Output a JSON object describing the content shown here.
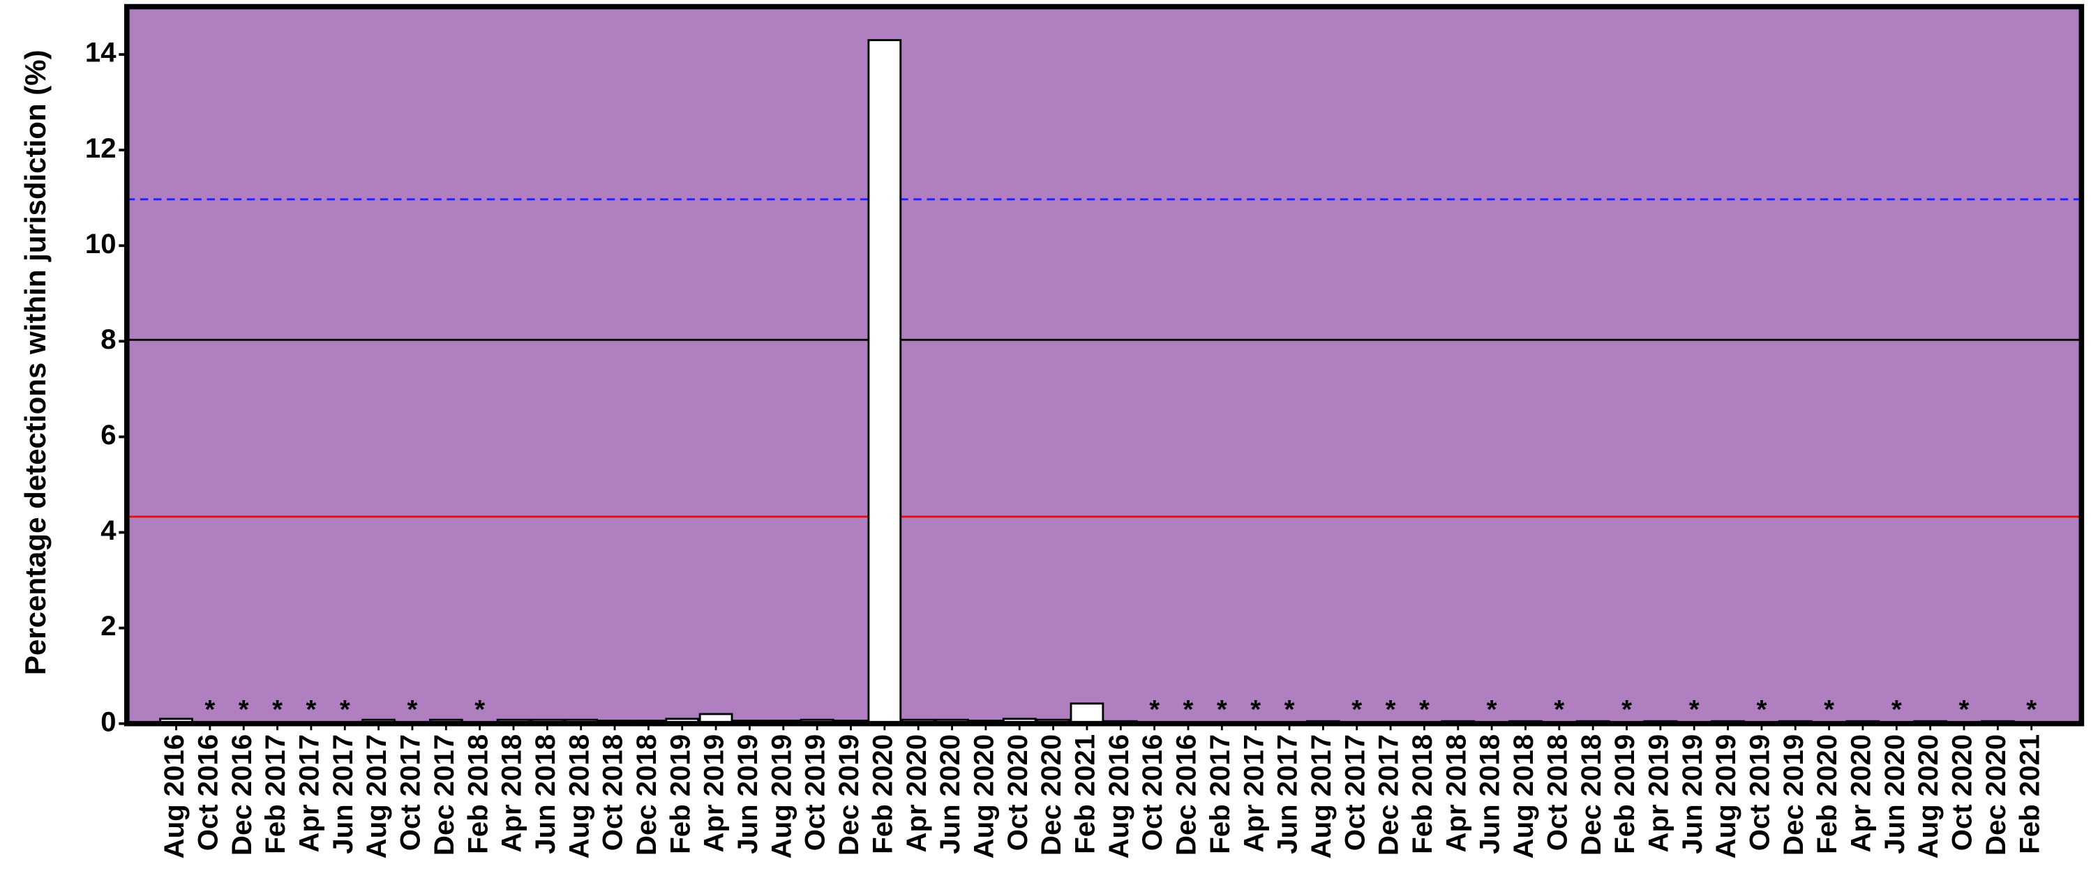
{
  "chart_data": {
    "type": "bar",
    "y_label": "Percentage detections  within jurisdiction (%)",
    "categories": [
      "Aug 2016",
      "Oct 2016",
      "Dec 2016",
      "Feb 2017",
      "Apr 2017",
      "Jun 2017",
      "Aug 2017",
      "Oct 2017",
      "Dec 2017",
      "Feb 2018",
      "Apr 2018",
      "Jun 2018",
      "Aug 2018",
      "Oct 2018",
      "Dec 2018",
      "Feb 2019",
      "Apr 2019",
      "Jun 2019",
      "Aug 2019",
      "Oct 2019",
      "Dec 2019",
      "Feb 2020",
      "Apr 2020",
      "Jun 2020",
      "Aug 2020",
      "Oct 2020",
      "Dec 2020",
      "Feb 2021",
      "Aug 2016",
      "Oct 2016",
      "Dec 2016",
      "Feb 2017",
      "Apr 2017",
      "Jun 2017",
      "Aug 2017",
      "Oct 2017",
      "Dec 2017",
      "Feb 2018",
      "Apr 2018",
      "Jun 2018",
      "Aug 2018",
      "Oct 2018",
      "Dec 2018",
      "Feb 2019",
      "Apr 2019",
      "Jun 2019",
      "Aug 2019",
      "Oct 2019",
      "Dec 2019",
      "Feb 2020",
      "Apr 2020",
      "Jun 2020",
      "Aug 2020",
      "Oct 2020",
      "Dec 2020",
      "Feb 2021"
    ],
    "values": [
      0.1,
      null,
      null,
      null,
      null,
      null,
      0.08,
      null,
      0.08,
      null,
      0.08,
      0.08,
      0.08,
      0.06,
      0.06,
      0.1,
      0.2,
      0.06,
      0.06,
      0.08,
      0.06,
      14.3,
      0.08,
      0.08,
      0.06,
      0.1,
      0.08,
      0.42,
      0.05,
      null,
      null,
      null,
      null,
      null,
      0.05,
      null,
      null,
      null,
      0.05,
      null,
      0.05,
      null,
      0.05,
      null,
      0.05,
      null,
      0.05,
      null,
      0.05,
      null,
      0.05,
      null,
      0.05,
      null,
      0.05,
      null
    ],
    "missing_marker": "*",
    "color": "#ffffff",
    "background": "#b07fc0",
    "ylim": [
      0,
      15
    ],
    "yticks": [
      0,
      2,
      4,
      6,
      8,
      10,
      12,
      14
    ],
    "reference_lines": [
      {
        "value": 10.97,
        "color": "#2020ff",
        "style": "dashed"
      },
      {
        "value": 8.03,
        "color": "#000000",
        "style": "solid"
      },
      {
        "value": 4.33,
        "color": "#e01010",
        "style": "solid"
      }
    ]
  }
}
